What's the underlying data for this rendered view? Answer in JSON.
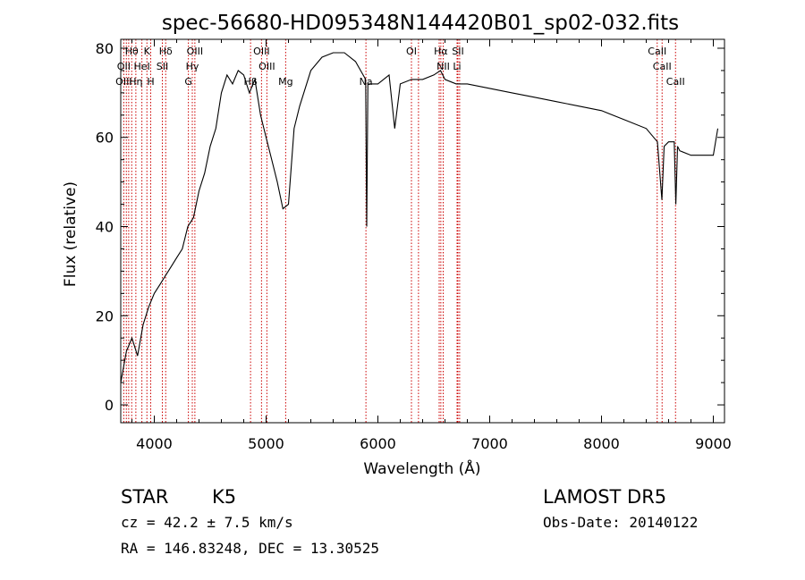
{
  "chart_data": {
    "type": "line",
    "title": "spec-56680-HD095348N144420B01_sp02-032.fits",
    "xlabel": "Wavelength (Å)",
    "ylabel": "Flux (relative)",
    "xlim": [
      3700,
      9100
    ],
    "ylim": [
      -4,
      82
    ],
    "x_ticks": [
      4000,
      5000,
      6000,
      7000,
      8000,
      9000
    ],
    "y_ticks": [
      0,
      20,
      40,
      60,
      80
    ],
    "grid": false,
    "series": [
      {
        "x": [
          3700,
          3750,
          3800,
          3850,
          3900,
          3950,
          4000,
          4050,
          4100,
          4150,
          4200,
          4250,
          4300,
          4350,
          4400,
          4450,
          4500,
          4550,
          4600,
          4650,
          4700,
          4750,
          4800,
          4850,
          4900,
          4950,
          5000,
          5050,
          5100,
          5150,
          5200,
          5250,
          5300,
          5400,
          5500,
          5600,
          5700,
          5800,
          5890,
          5900,
          5910,
          6000,
          6100,
          6150,
          6200,
          6300,
          6400,
          6500,
          6560,
          6600,
          6700,
          6800,
          7000,
          7200,
          7400,
          7600,
          7800,
          8000,
          8200,
          8400,
          8500,
          8540,
          8560,
          8600,
          8650,
          8665,
          8680,
          8700,
          8800,
          8900,
          9000,
          9040
        ],
        "y": [
          5,
          12,
          15,
          11,
          18,
          22,
          25,
          27,
          29,
          31,
          33,
          35,
          40,
          42,
          48,
          52,
          58,
          62,
          70,
          74,
          72,
          75,
          74,
          70,
          73,
          65,
          60,
          55,
          50,
          44,
          45,
          62,
          67,
          75,
          78,
          79,
          79,
          77,
          73,
          40,
          72,
          72,
          74,
          62,
          72,
          73,
          73,
          74,
          75,
          73,
          72,
          72,
          71,
          70,
          69,
          68,
          67,
          66,
          64,
          62,
          59,
          46,
          58,
          59,
          59,
          45,
          58,
          57,
          56,
          56,
          56,
          62
        ]
      }
    ],
    "line_labels": [
      {
        "text": "Hθ",
        "x": 3798,
        "row": 1
      },
      {
        "text": "K",
        "x": 3934,
        "row": 1
      },
      {
        "text": "Hδ",
        "x": 4102,
        "row": 1
      },
      {
        "text": "OIII",
        "x": 4363,
        "row": 1
      },
      {
        "text": "OIII",
        "x": 4959,
        "row": 1
      },
      {
        "text": "OI",
        "x": 6300,
        "row": 1
      },
      {
        "text": "Hα",
        "x": 6563,
        "row": 1
      },
      {
        "text": "SII",
        "x": 6716,
        "row": 1
      },
      {
        "text": "CaII",
        "x": 8498,
        "row": 1
      },
      {
        "text": "OII",
        "x": 3727,
        "row": 2
      },
      {
        "text": "HeI",
        "x": 3889,
        "row": 2
      },
      {
        "text": "SII",
        "x": 4072,
        "row": 2
      },
      {
        "text": "Hγ",
        "x": 4340,
        "row": 2
      },
      {
        "text": "OIII",
        "x": 5007,
        "row": 2
      },
      {
        "text": "NII",
        "x": 6584,
        "row": 2
      },
      {
        "text": "Li",
        "x": 6708,
        "row": 2
      },
      {
        "text": "CaII",
        "x": 8542,
        "row": 2
      },
      {
        "text": "OIII",
        "x": 3727,
        "row": 3
      },
      {
        "text": "Hη",
        "x": 3835,
        "row": 3
      },
      {
        "text": "H",
        "x": 3968,
        "row": 3
      },
      {
        "text": "G",
        "x": 4305,
        "row": 3
      },
      {
        "text": "Hβ",
        "x": 4861,
        "row": 3
      },
      {
        "text": "Mg",
        "x": 5175,
        "row": 3
      },
      {
        "text": "Na",
        "x": 5893,
        "row": 3
      },
      {
        "text": "CaII",
        "x": 8662,
        "row": 3
      }
    ],
    "line_markers": [
      3727,
      3750,
      3771,
      3798,
      3835,
      3889,
      3934,
      3968,
      4072,
      4102,
      4305,
      4340,
      4363,
      4861,
      4959,
      5007,
      5175,
      5893,
      6300,
      6363,
      6548,
      6563,
      6584,
      6708,
      6716,
      6731,
      8498,
      8542,
      8662
    ]
  },
  "footer": {
    "object_class": "STAR",
    "subclass": "K5",
    "survey": "LAMOST DR5",
    "redshift_text": "cz = 42.2 ± 7.5 km/s",
    "obs_date": "Obs-Date: 20140122",
    "coords_text": "RA = 146.83248, DEC =  13.30525"
  }
}
